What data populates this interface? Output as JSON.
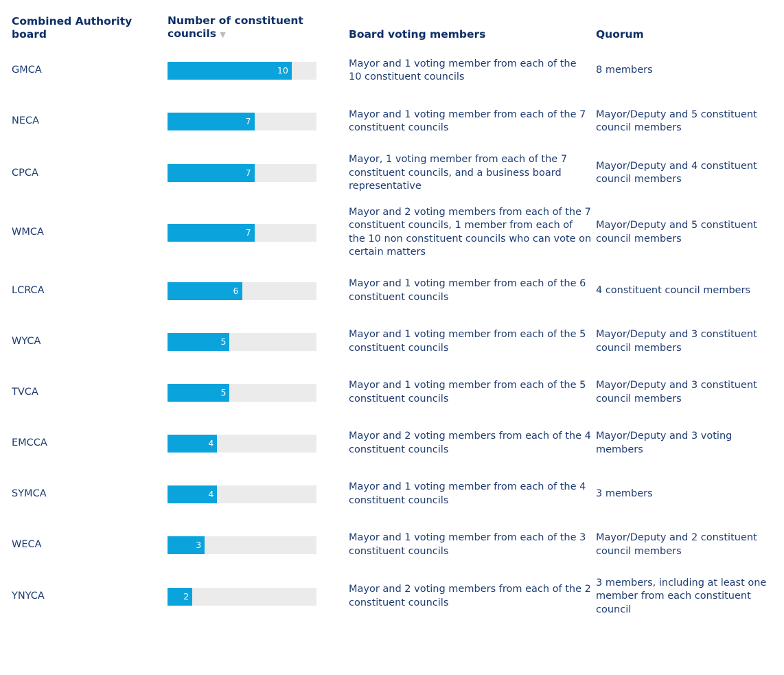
{
  "table": {
    "headers": [
      "Combined Authority board",
      "Number of constituent councils",
      "Board voting members",
      "Quorum"
    ],
    "bar_color": "#0aa3dc",
    "track_color": "#ebebeb",
    "xlim": [
      0,
      12
    ],
    "rows": [
      {
        "board": "GMCA",
        "councils": 10,
        "voting": "Mayor and 1 voting member from each of the 10 constituent councils",
        "quorum": "8 members"
      },
      {
        "board": "NECA",
        "councils": 7,
        "voting": "Mayor and 1 voting member from each of the 7 constituent councils",
        "quorum": "Mayor/Deputy and 5 constituent council members"
      },
      {
        "board": "CPCA",
        "councils": 7,
        "voting": "Mayor, 1 voting member from each of the 7 constituent councils, and a business board representative",
        "quorum": "Mayor/Deputy and 4 constituent council members"
      },
      {
        "board": "WMCA",
        "councils": 7,
        "voting": "Mayor and 2 voting members from each of the 7 constituent councils, 1 member from each of the 10 non constituent councils who can vote on certain matters",
        "quorum": "Mayor/Deputy and 5 constituent council members"
      },
      {
        "board": "LCRCA",
        "councils": 6,
        "voting": "Mayor and 1 voting member from each of the 6 constituent councils",
        "quorum": "4 constituent council members"
      },
      {
        "board": "WYCA",
        "councils": 5,
        "voting": "Mayor and 1 voting member from each of the 5 constituent councils",
        "quorum": "Mayor/Deputy and 3 constituent council members"
      },
      {
        "board": "TVCA",
        "councils": 5,
        "voting": "Mayor and 1 voting member from each of the 5 constituent councils",
        "quorum": "Mayor/Deputy and 3 constituent council members"
      },
      {
        "board": "EMCCA",
        "councils": 4,
        "voting": "Mayor and 2 voting members from each of the 4 constituent councils",
        "quorum": "Mayor/Deputy and 3 voting members"
      },
      {
        "board": "SYMCA",
        "councils": 4,
        "voting": "Mayor and 1 voting member from each of the 4 constituent councils",
        "quorum": "3 members"
      },
      {
        "board": "WECA",
        "councils": 3,
        "voting": "Mayor and 1 voting member from each of the 3 constituent councils",
        "quorum": "Mayor/Deputy and 2 constituent council members"
      },
      {
        "board": "YNYCA",
        "councils": 2,
        "voting": "Mayor and 2 voting members from each of the 2 constituent councils",
        "quorum": "3 members, including at least one member from each constituent council"
      }
    ]
  }
}
